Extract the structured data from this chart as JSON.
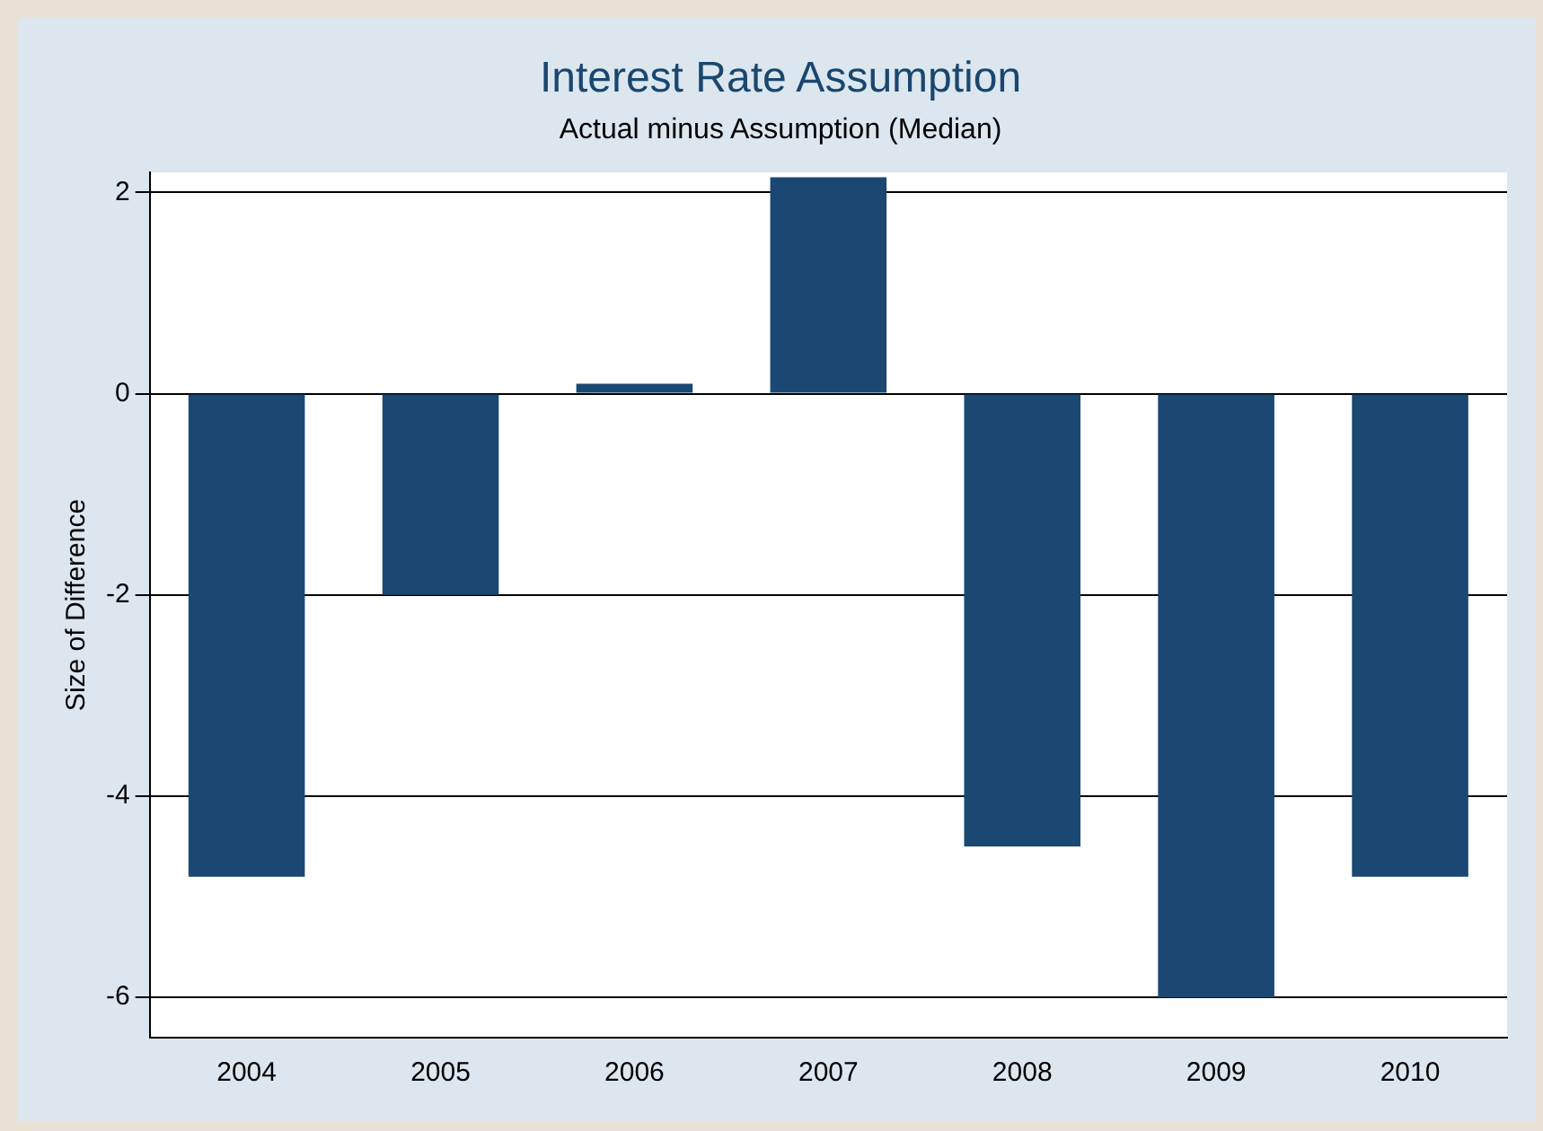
{
  "chart_data": {
    "type": "bar",
    "title": "Interest Rate Assumption",
    "subtitle": "Actual minus Assumption (Median)",
    "ylabel": "Size of Difference",
    "categories": [
      "2004",
      "2005",
      "2006",
      "2007",
      "2008",
      "2009",
      "2010"
    ],
    "values": [
      -4.8,
      -2.0,
      0.1,
      2.15,
      -4.5,
      -6.0,
      -4.8
    ],
    "color": "#1a4872",
    "ylim": [
      -6.4,
      2.2
    ],
    "yticks": [
      -6,
      -4,
      -2,
      0,
      2
    ],
    "grid": "y",
    "legend": false
  }
}
